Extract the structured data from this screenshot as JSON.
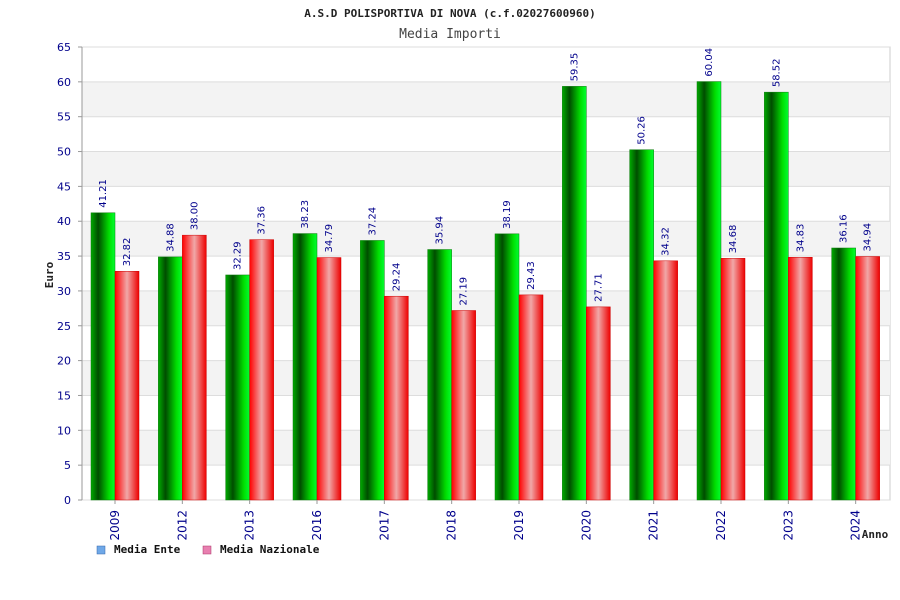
{
  "chart_data": {
    "type": "bar",
    "title": "A.S.D POLISPORTIVA DI NOVA (c.f.02027600960)",
    "subtitle": "Media Importi",
    "xlabel": "Anno",
    "ylabel": "Euro",
    "ylim": [
      0,
      65
    ],
    "ytick_step": 5,
    "categories": [
      "2009",
      "2012",
      "2013",
      "2016",
      "2017",
      "2018",
      "2019",
      "2020",
      "2021",
      "2022",
      "2023",
      "2024"
    ],
    "series": [
      {
        "name": "Media Ente",
        "values": [
          41.21,
          34.88,
          32.29,
          38.23,
          37.24,
          35.94,
          38.19,
          59.35,
          50.26,
          60.04,
          58.52,
          36.16
        ],
        "labels": [
          "41.21",
          "34.88",
          "32.29",
          "38.23",
          "37.24",
          "35.94",
          "38.19",
          "59.35",
          "50.26",
          "60.04",
          "58.52",
          "36.16"
        ]
      },
      {
        "name": "Media Nazionale",
        "values": [
          32.82,
          38.0,
          37.36,
          34.79,
          29.24,
          27.19,
          29.43,
          27.71,
          34.32,
          34.68,
          34.83,
          34.94
        ],
        "labels": [
          "32.82",
          "38.00",
          "37.36",
          "34.79",
          "29.24",
          "27.19",
          "29.43",
          "27.71",
          "34.32",
          "34.68",
          "34.83",
          "34.94"
        ]
      }
    ],
    "legend": {
      "position": "bottom-left",
      "items": [
        {
          "label": "Media Ente",
          "color": "#6fa8e8"
        },
        {
          "label": "Media Nazionale",
          "color": "#e87fb0"
        }
      ]
    },
    "colors": {
      "ente_dark": "#006600",
      "ente_light": "#00ee00",
      "naz_dark": "#ee0000",
      "naz_light": "#f0b0b0",
      "band": "#f3f3f3",
      "grid": "#dddddd"
    }
  }
}
